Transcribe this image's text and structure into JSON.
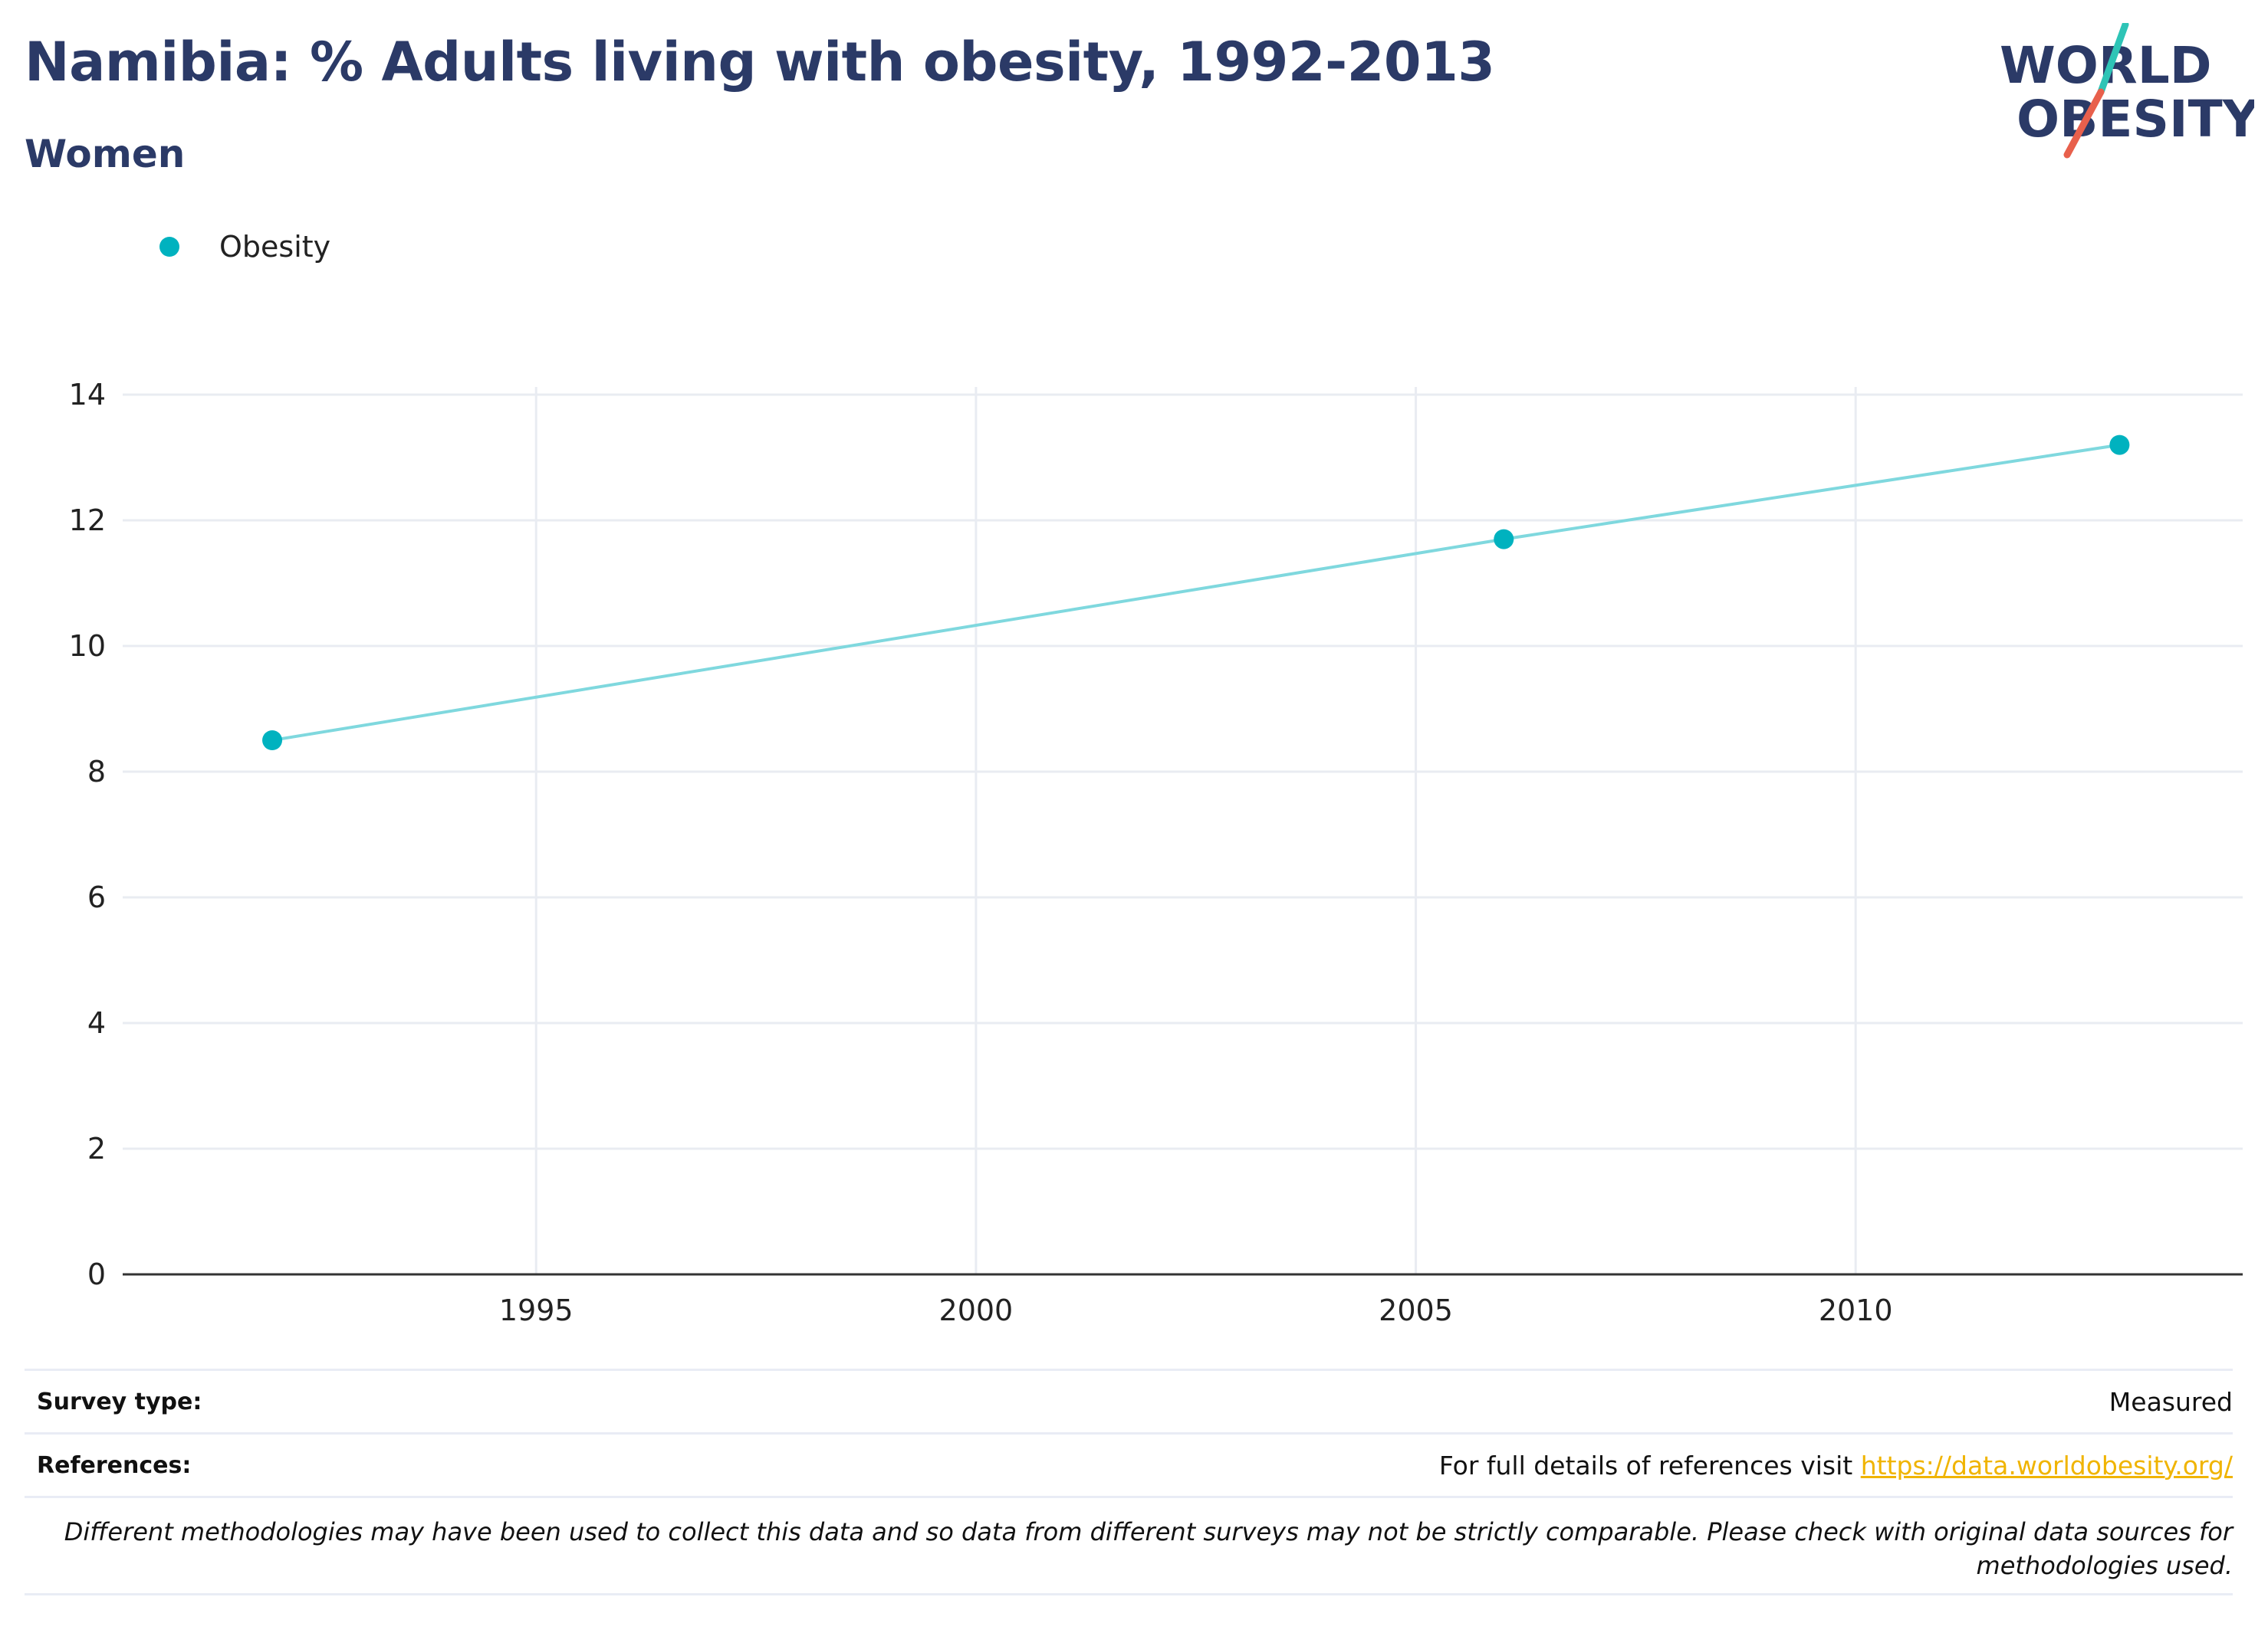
{
  "header": {
    "title": "Namibia: % Adults living with obesity, 1992-2013",
    "subtitle": "Women"
  },
  "logo": {
    "line1": "WORLD",
    "line2": "OBESITY"
  },
  "colors": {
    "title": "#2b3a67",
    "series": "#00b2bf",
    "series_line": "#7fd8de",
    "grid": "#e9ecf2",
    "link": "#f0b400",
    "logo_teal": "#2ec4b6",
    "logo_coral": "#e8604c"
  },
  "chart_data": {
    "type": "line",
    "series": [
      {
        "name": "Obesity",
        "x": [
          1992,
          2006,
          2013
        ],
        "y": [
          8.5,
          11.7,
          13.2
        ]
      }
    ],
    "xticks": [
      "1995",
      "2000",
      "2005",
      "2010"
    ],
    "yticks": [
      "0",
      "2",
      "4",
      "6",
      "8",
      "10",
      "12",
      "14"
    ],
    "xlim": [
      1990.3,
      2014.4
    ],
    "ylim": [
      0,
      14
    ],
    "grid": true,
    "legend_position": "top-left"
  },
  "footer": {
    "survey_label": "Survey type:",
    "survey_value": "Measured",
    "references_label": "References:",
    "references_text": "For full details of references visit ",
    "references_link": "https://data.worldobesity.org/",
    "note": "Different methodologies may have been used to collect this data and so data from different surveys may not be strictly comparable. Please check with original data sources for methodologies used."
  }
}
